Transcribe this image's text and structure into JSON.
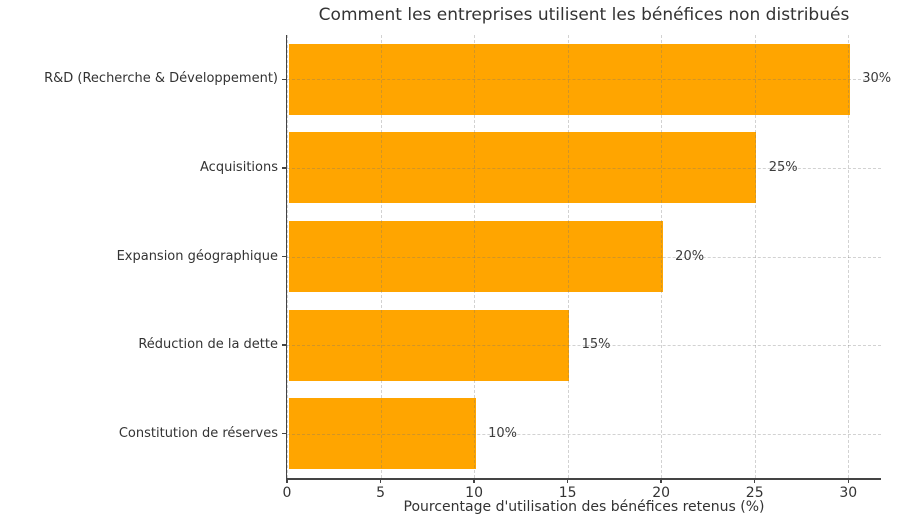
{
  "chart_data": {
    "type": "bar",
    "orientation": "horizontal",
    "title": "Comment les entreprises utilisent les bénéfices non distribués",
    "xlabel": "Pourcentage d'utilisation des bénéfices retenus (%)",
    "ylabel": "",
    "categories": [
      "R&D (Recherche & Développement)",
      "Acquisitions",
      "Expansion géographique",
      "Réduction de la dette",
      "Constitution de réserves"
    ],
    "values": [
      30,
      25,
      20,
      15,
      10
    ],
    "value_labels": [
      "30%",
      "25%",
      "20%",
      "15%",
      "10%"
    ],
    "xticks": [
      0,
      5,
      10,
      15,
      20,
      25,
      30
    ],
    "xtick_labels": [
      "0",
      "5",
      "10",
      "15",
      "20",
      "25",
      "30"
    ],
    "xlim": [
      0,
      31.75
    ],
    "grid": true,
    "legend": "none",
    "bar_color": "#FFA500",
    "axis_color": "#444444",
    "text_color": "#333333",
    "value_label_color": "#3c3c3c",
    "grid_color": "#737373"
  }
}
